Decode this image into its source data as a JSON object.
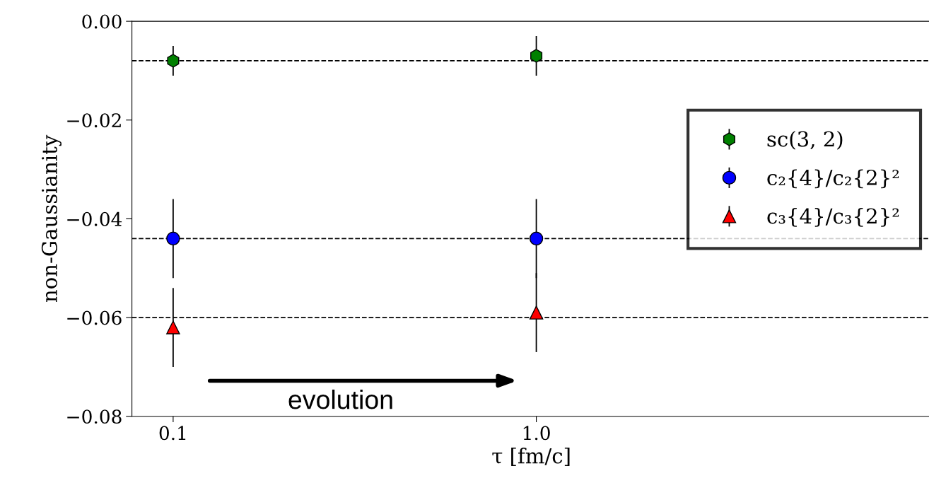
{
  "chart_data": {
    "type": "scatter",
    "xlabel": "τ [fm/c]",
    "ylabel": "non-Gaussianity",
    "x": [
      0.1,
      1.0
    ],
    "log": "x",
    "xlim": [
      0.077,
      12.2
    ],
    "xticks": [
      0.1,
      {
        "value": 1.0,
        "label": "1.0"
      }
    ],
    "ylim": [
      -0.08,
      0.0
    ],
    "yticks": [
      {
        "value": -0.08,
        "label": "−0.08"
      },
      {
        "value": -0.06,
        "label": "−0.06"
      },
      {
        "value": -0.04,
        "label": "−0.04"
      },
      {
        "value": -0.02,
        "label": "−0.02"
      },
      {
        "value": 0.0,
        "label": "0.00"
      }
    ],
    "series": [
      {
        "name": "sc(3, 2)",
        "color": "#008000",
        "values": [
          -0.008,
          -0.007
        ],
        "errors": [
          0.003,
          0.004
        ]
      },
      {
        "name": "c₂{4}/c₂{2}²",
        "color": "#0000ff",
        "marker": "circle",
        "values": [
          -0.044,
          -0.044
        ],
        "errors": [
          0.008,
          0.008
        ]
      },
      {
        "name": "c₃{4}/c₃{2}²",
        "color": "#ff0000",
        "marker": "triangle",
        "values": [
          -0.062,
          -0.059
        ],
        "errors": [
          0.008,
          0.008
        ]
      }
    ],
    "ref_lines": [
      {
        "axis": "y",
        "value": -0.008,
        "line_style": "dashed",
        "color": "#000000"
      },
      {
        "axis": "y",
        "value": -0.044,
        "line_style": "dashed",
        "color": "#000000"
      },
      {
        "axis": "y",
        "value": -0.06,
        "line_style": "dashed",
        "color": "#000000"
      }
    ],
    "annotations": [
      "evolution"
    ],
    "legend": "right",
    "grid": false
  }
}
